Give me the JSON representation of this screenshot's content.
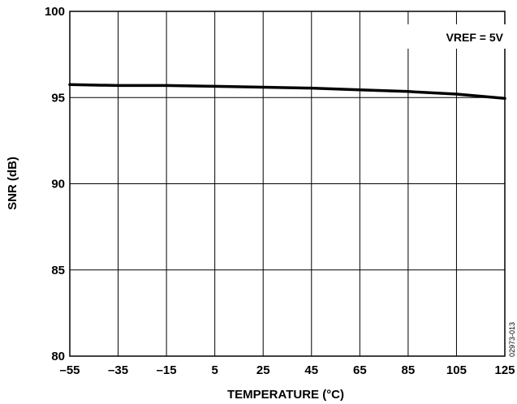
{
  "chart_data": {
    "type": "line",
    "title": "",
    "xlabel": "TEMPERATURE (°C)",
    "ylabel": "SNR (dB)",
    "xlim": [
      -55,
      125
    ],
    "ylim": [
      80,
      100
    ],
    "xticks": [
      -55,
      -35,
      -15,
      5,
      25,
      45,
      65,
      85,
      105,
      125
    ],
    "xtick_labels": [
      "–55",
      "–35",
      "–15",
      "5",
      "25",
      "45",
      "65",
      "85",
      "105",
      "125"
    ],
    "yticks": [
      80,
      85,
      90,
      95,
      100
    ],
    "ytick_labels": [
      "80",
      "85",
      "90",
      "95",
      "100"
    ],
    "grid": true,
    "annotation": "VREF = 5V",
    "figure_id": "02973-013",
    "series": [
      {
        "x": [
          -55,
          -35,
          -15,
          5,
          25,
          45,
          65,
          85,
          105,
          125
        ],
        "y": [
          95.75,
          95.7,
          95.7,
          95.65,
          95.6,
          95.55,
          95.45,
          95.35,
          95.2,
          94.95
        ]
      }
    ]
  }
}
